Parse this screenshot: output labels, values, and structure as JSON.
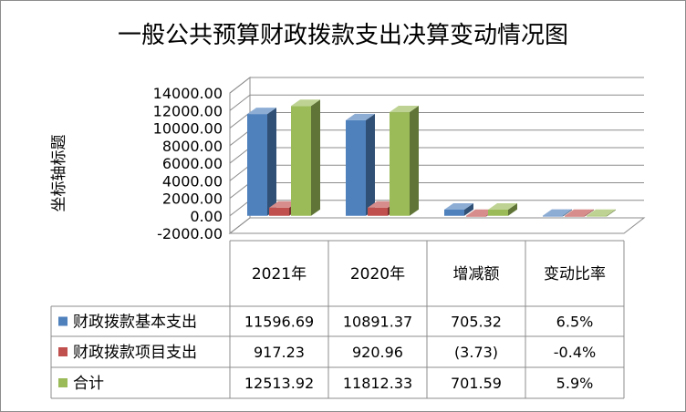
{
  "chart_data": {
    "type": "bar",
    "title": "一般公共预算财政拨款支出决算变动情况图",
    "ylabel": "坐标轴标题",
    "xlabel": "",
    "categories": [
      "2021年",
      "2020年",
      "增减额",
      "变动比率"
    ],
    "ylim": [
      -2000,
      14000
    ],
    "yticks": [
      "-2000.00",
      "0.00",
      "2000.00",
      "4000.00",
      "6000.00",
      "8000.00",
      "10000.00",
      "12000.00",
      "14000.00"
    ],
    "grid": true,
    "legend": "data-table",
    "series": [
      {
        "name": "财政拨款基本支出",
        "color": "#4f81bd",
        "values": [
          11596.69,
          10891.37,
          705.32,
          6.5
        ],
        "labels": [
          "11596.69",
          "10891.37",
          "705.32",
          "6.5%"
        ]
      },
      {
        "name": "财政拨款项目支出",
        "color": "#c0504d",
        "values": [
          917.23,
          920.96,
          -3.73,
          -0.4
        ],
        "labels": [
          "917.23",
          "920.96",
          "(3.73)",
          "-0.4%"
        ]
      },
      {
        "name": "合计",
        "color": "#9bbb59",
        "values": [
          12513.92,
          11812.33,
          701.59,
          5.9
        ],
        "labels": [
          "12513.92",
          "11812.33",
          "701.59",
          "5.9%"
        ]
      }
    ]
  }
}
